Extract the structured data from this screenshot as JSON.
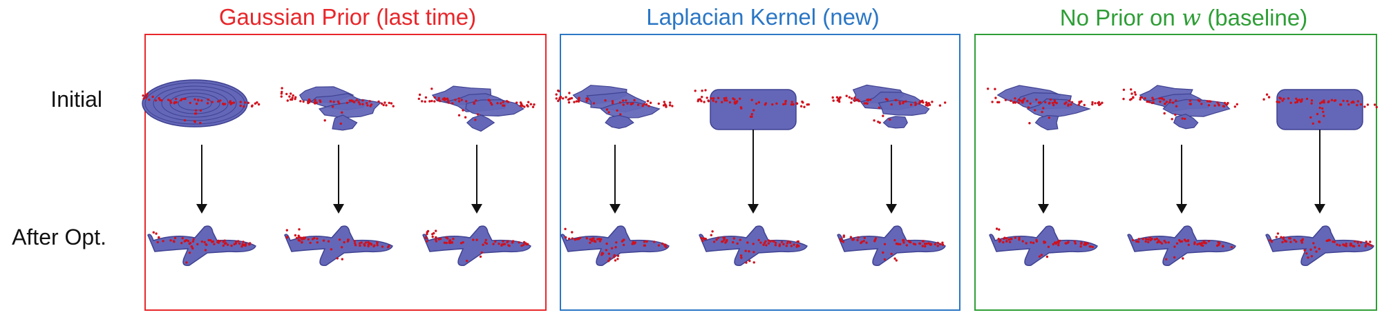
{
  "panels": [
    {
      "id": "gaussian",
      "title": "Gaussian Prior (last time)",
      "title_parts": null,
      "color": "#e8262a"
    },
    {
      "id": "laplacian",
      "title": "Laplacian Kernel (new)",
      "title_parts": null,
      "color": "#2a76c5"
    },
    {
      "id": "noprior",
      "title": "No Prior on w (baseline)",
      "title_parts": {
        "pre": "No Prior on ",
        "var": "w",
        "post": " (baseline)"
      },
      "color": "#2e9e36"
    }
  ],
  "rows": {
    "initial": "Initial",
    "after": "After Opt."
  },
  "colors": {
    "mesh": "#6467b8",
    "mesh_edge": "#3e4190",
    "points": "#d0101c",
    "arrow": "#111111"
  },
  "icons": {
    "mesh": "airplane-mesh-icon",
    "arrow": "down-arrow-icon"
  }
}
